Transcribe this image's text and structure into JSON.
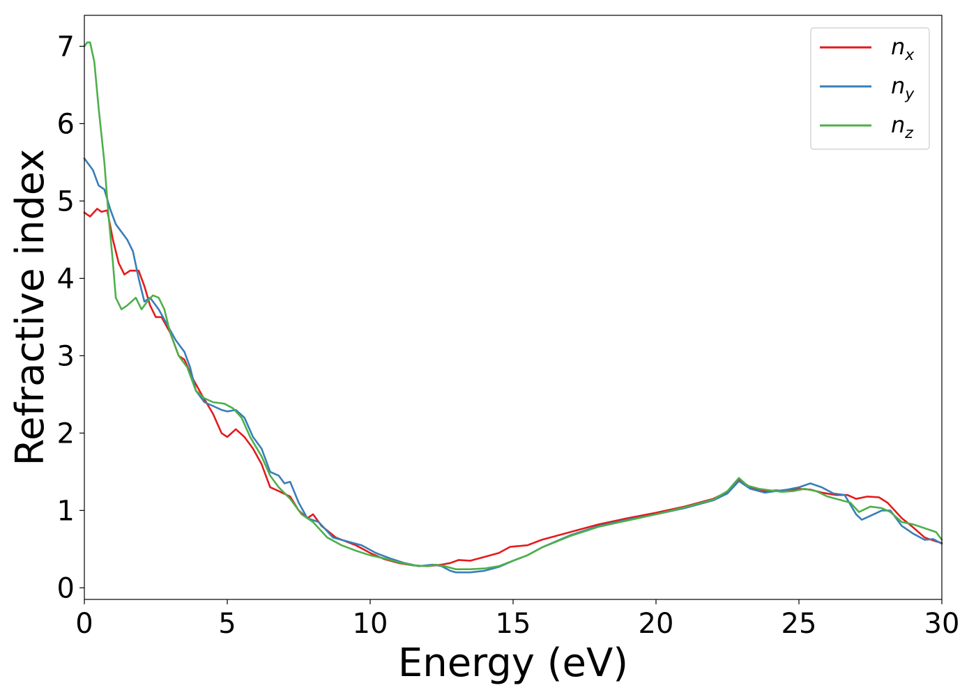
{
  "chart_data": {
    "type": "line",
    "title": "",
    "xlabel": "Energy (eV)",
    "ylabel": "Refractive index",
    "xlim": [
      0,
      30
    ],
    "ylim": [
      -0.15,
      7.4
    ],
    "xticks": [
      0,
      5,
      10,
      15,
      20,
      25,
      30
    ],
    "yticks": [
      0,
      1,
      2,
      3,
      4,
      5,
      6,
      7
    ],
    "grid": false,
    "legend_position": "top-right",
    "series": [
      {
        "name": "n_x",
        "legend_base": "n",
        "legend_sub": "x",
        "color": "#e41a1c",
        "points": [
          [
            0,
            4.85
          ],
          [
            0.2,
            4.8
          ],
          [
            0.45,
            4.9
          ],
          [
            0.6,
            4.86
          ],
          [
            0.8,
            4.88
          ],
          [
            1.0,
            4.5
          ],
          [
            1.2,
            4.2
          ],
          [
            1.4,
            4.05
          ],
          [
            1.6,
            4.1
          ],
          [
            1.9,
            4.1
          ],
          [
            2.1,
            3.9
          ],
          [
            2.3,
            3.65
          ],
          [
            2.5,
            3.5
          ],
          [
            2.7,
            3.5
          ],
          [
            3.0,
            3.3
          ],
          [
            3.3,
            3.0
          ],
          [
            3.5,
            2.95
          ],
          [
            3.8,
            2.7
          ],
          [
            4.1,
            2.5
          ],
          [
            4.5,
            2.25
          ],
          [
            4.8,
            2.0
          ],
          [
            5.0,
            1.95
          ],
          [
            5.3,
            2.05
          ],
          [
            5.6,
            1.95
          ],
          [
            5.9,
            1.8
          ],
          [
            6.2,
            1.6
          ],
          [
            6.5,
            1.3
          ],
          [
            6.8,
            1.25
          ],
          [
            7.2,
            1.18
          ],
          [
            7.5,
            1.0
          ],
          [
            7.8,
            0.9
          ],
          [
            8.0,
            0.95
          ],
          [
            8.3,
            0.8
          ],
          [
            8.8,
            0.65
          ],
          [
            9.5,
            0.55
          ],
          [
            10.0,
            0.45
          ],
          [
            10.5,
            0.37
          ],
          [
            11.0,
            0.32
          ],
          [
            11.5,
            0.29
          ],
          [
            12.0,
            0.28
          ],
          [
            12.5,
            0.3
          ],
          [
            12.8,
            0.32
          ],
          [
            13.1,
            0.36
          ],
          [
            13.5,
            0.35
          ],
          [
            14.0,
            0.4
          ],
          [
            14.5,
            0.45
          ],
          [
            14.9,
            0.53
          ],
          [
            15.5,
            0.55
          ],
          [
            16.0,
            0.62
          ],
          [
            17.0,
            0.72
          ],
          [
            18.0,
            0.82
          ],
          [
            19.0,
            0.9
          ],
          [
            20.0,
            0.97
          ],
          [
            21.0,
            1.05
          ],
          [
            22.0,
            1.15
          ],
          [
            22.5,
            1.24
          ],
          [
            22.9,
            1.4
          ],
          [
            23.3,
            1.3
          ],
          [
            23.8,
            1.25
          ],
          [
            24.2,
            1.26
          ],
          [
            24.6,
            1.25
          ],
          [
            25.0,
            1.28
          ],
          [
            25.4,
            1.27
          ],
          [
            25.8,
            1.23
          ],
          [
            26.3,
            1.2
          ],
          [
            26.7,
            1.2
          ],
          [
            27.0,
            1.15
          ],
          [
            27.4,
            1.18
          ],
          [
            27.8,
            1.17
          ],
          [
            28.1,
            1.1
          ],
          [
            28.6,
            0.9
          ],
          [
            29.0,
            0.78
          ],
          [
            29.4,
            0.65
          ],
          [
            29.8,
            0.6
          ],
          [
            30.0,
            0.58
          ]
        ]
      },
      {
        "name": "n_y",
        "legend_base": "n",
        "legend_sub": "y",
        "color": "#377eb8",
        "points": [
          [
            0,
            5.55
          ],
          [
            0.3,
            5.4
          ],
          [
            0.5,
            5.2
          ],
          [
            0.7,
            5.15
          ],
          [
            0.9,
            4.9
          ],
          [
            1.1,
            4.7
          ],
          [
            1.3,
            4.6
          ],
          [
            1.5,
            4.5
          ],
          [
            1.7,
            4.35
          ],
          [
            1.9,
            4.0
          ],
          [
            2.1,
            3.7
          ],
          [
            2.3,
            3.75
          ],
          [
            2.6,
            3.6
          ],
          [
            2.9,
            3.4
          ],
          [
            3.2,
            3.2
          ],
          [
            3.5,
            3.05
          ],
          [
            3.7,
            2.85
          ],
          [
            3.9,
            2.55
          ],
          [
            4.2,
            2.4
          ],
          [
            4.5,
            2.35
          ],
          [
            4.8,
            2.3
          ],
          [
            5.0,
            2.28
          ],
          [
            5.3,
            2.3
          ],
          [
            5.6,
            2.2
          ],
          [
            5.9,
            1.95
          ],
          [
            6.2,
            1.8
          ],
          [
            6.5,
            1.5
          ],
          [
            6.8,
            1.45
          ],
          [
            7.0,
            1.35
          ],
          [
            7.2,
            1.37
          ],
          [
            7.5,
            1.1
          ],
          [
            7.8,
            0.9
          ],
          [
            8.2,
            0.85
          ],
          [
            8.7,
            0.65
          ],
          [
            9.2,
            0.6
          ],
          [
            9.7,
            0.55
          ],
          [
            10.2,
            0.45
          ],
          [
            10.7,
            0.38
          ],
          [
            11.2,
            0.32
          ],
          [
            11.7,
            0.28
          ],
          [
            12.2,
            0.3
          ],
          [
            12.5,
            0.28
          ],
          [
            12.8,
            0.22
          ],
          [
            13.0,
            0.2
          ],
          [
            13.5,
            0.2
          ],
          [
            14.0,
            0.22
          ],
          [
            14.5,
            0.27
          ],
          [
            15.0,
            0.35
          ],
          [
            15.5,
            0.42
          ],
          [
            16.0,
            0.52
          ],
          [
            17.0,
            0.68
          ],
          [
            18.0,
            0.8
          ],
          [
            19.0,
            0.88
          ],
          [
            20.0,
            0.95
          ],
          [
            21.0,
            1.03
          ],
          [
            22.0,
            1.13
          ],
          [
            22.5,
            1.22
          ],
          [
            22.9,
            1.38
          ],
          [
            23.3,
            1.28
          ],
          [
            23.8,
            1.23
          ],
          [
            24.2,
            1.25
          ],
          [
            24.6,
            1.27
          ],
          [
            25.0,
            1.3
          ],
          [
            25.4,
            1.35
          ],
          [
            25.8,
            1.3
          ],
          [
            26.2,
            1.22
          ],
          [
            26.6,
            1.2
          ],
          [
            27.0,
            0.95
          ],
          [
            27.2,
            0.88
          ],
          [
            27.5,
            0.93
          ],
          [
            27.9,
            1.0
          ],
          [
            28.2,
            1.0
          ],
          [
            28.6,
            0.8
          ],
          [
            29.0,
            0.7
          ],
          [
            29.4,
            0.62
          ],
          [
            29.7,
            0.63
          ],
          [
            30.0,
            0.57
          ]
        ]
      },
      {
        "name": "n_z",
        "legend_base": "n",
        "legend_sub": "z",
        "color": "#4daf4a",
        "points": [
          [
            0,
            7.0
          ],
          [
            0.1,
            7.05
          ],
          [
            0.2,
            7.05
          ],
          [
            0.35,
            6.8
          ],
          [
            0.5,
            6.2
          ],
          [
            0.7,
            5.5
          ],
          [
            0.85,
            4.8
          ],
          [
            1.0,
            4.2
          ],
          [
            1.1,
            3.75
          ],
          [
            1.3,
            3.6
          ],
          [
            1.5,
            3.65
          ],
          [
            1.8,
            3.75
          ],
          [
            2.0,
            3.6
          ],
          [
            2.2,
            3.7
          ],
          [
            2.4,
            3.78
          ],
          [
            2.6,
            3.75
          ],
          [
            2.8,
            3.6
          ],
          [
            3.0,
            3.3
          ],
          [
            3.3,
            3.0
          ],
          [
            3.6,
            2.85
          ],
          [
            3.9,
            2.55
          ],
          [
            4.2,
            2.45
          ],
          [
            4.5,
            2.4
          ],
          [
            4.9,
            2.38
          ],
          [
            5.2,
            2.32
          ],
          [
            5.5,
            2.2
          ],
          [
            5.8,
            1.95
          ],
          [
            6.2,
            1.7
          ],
          [
            6.5,
            1.45
          ],
          [
            6.8,
            1.3
          ],
          [
            7.2,
            1.15
          ],
          [
            7.6,
            0.95
          ],
          [
            8.0,
            0.85
          ],
          [
            8.5,
            0.65
          ],
          [
            9.0,
            0.55
          ],
          [
            9.5,
            0.48
          ],
          [
            10.0,
            0.42
          ],
          [
            10.5,
            0.38
          ],
          [
            11.0,
            0.33
          ],
          [
            11.5,
            0.29
          ],
          [
            12.0,
            0.28
          ],
          [
            12.3,
            0.3
          ],
          [
            12.6,
            0.28
          ],
          [
            13.0,
            0.24
          ],
          [
            13.5,
            0.24
          ],
          [
            14.0,
            0.25
          ],
          [
            14.5,
            0.28
          ],
          [
            15.0,
            0.35
          ],
          [
            15.5,
            0.42
          ],
          [
            16.0,
            0.52
          ],
          [
            17.0,
            0.67
          ],
          [
            18.0,
            0.79
          ],
          [
            19.0,
            0.87
          ],
          [
            20.0,
            0.95
          ],
          [
            21.0,
            1.04
          ],
          [
            22.0,
            1.14
          ],
          [
            22.5,
            1.25
          ],
          [
            22.9,
            1.42
          ],
          [
            23.2,
            1.32
          ],
          [
            23.6,
            1.28
          ],
          [
            24.0,
            1.26
          ],
          [
            24.4,
            1.24
          ],
          [
            24.8,
            1.25
          ],
          [
            25.2,
            1.28
          ],
          [
            25.6,
            1.25
          ],
          [
            26.0,
            1.18
          ],
          [
            26.5,
            1.13
          ],
          [
            26.8,
            1.1
          ],
          [
            27.1,
            0.98
          ],
          [
            27.5,
            1.05
          ],
          [
            27.9,
            1.03
          ],
          [
            28.2,
            0.98
          ],
          [
            28.6,
            0.85
          ],
          [
            29.0,
            0.82
          ],
          [
            29.4,
            0.77
          ],
          [
            29.8,
            0.72
          ],
          [
            30.0,
            0.62
          ]
        ]
      }
    ]
  }
}
